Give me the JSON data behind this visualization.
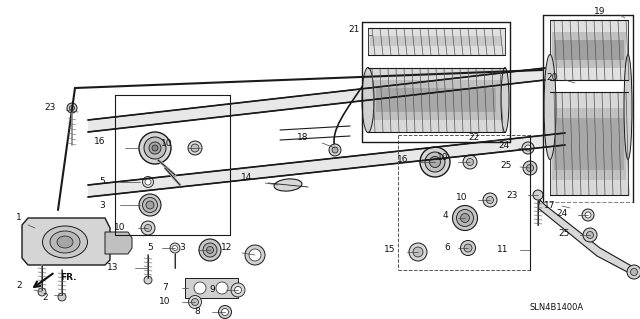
{
  "background_color": "#ffffff",
  "diagram_code": "SLN4B1400A",
  "fig_width": 6.4,
  "fig_height": 3.19,
  "dpi": 100,
  "line_color": "#1a1a1a",
  "text_color": "#111111",
  "label_fontsize": 6.5,
  "diagram_code_fontsize": 6.0
}
